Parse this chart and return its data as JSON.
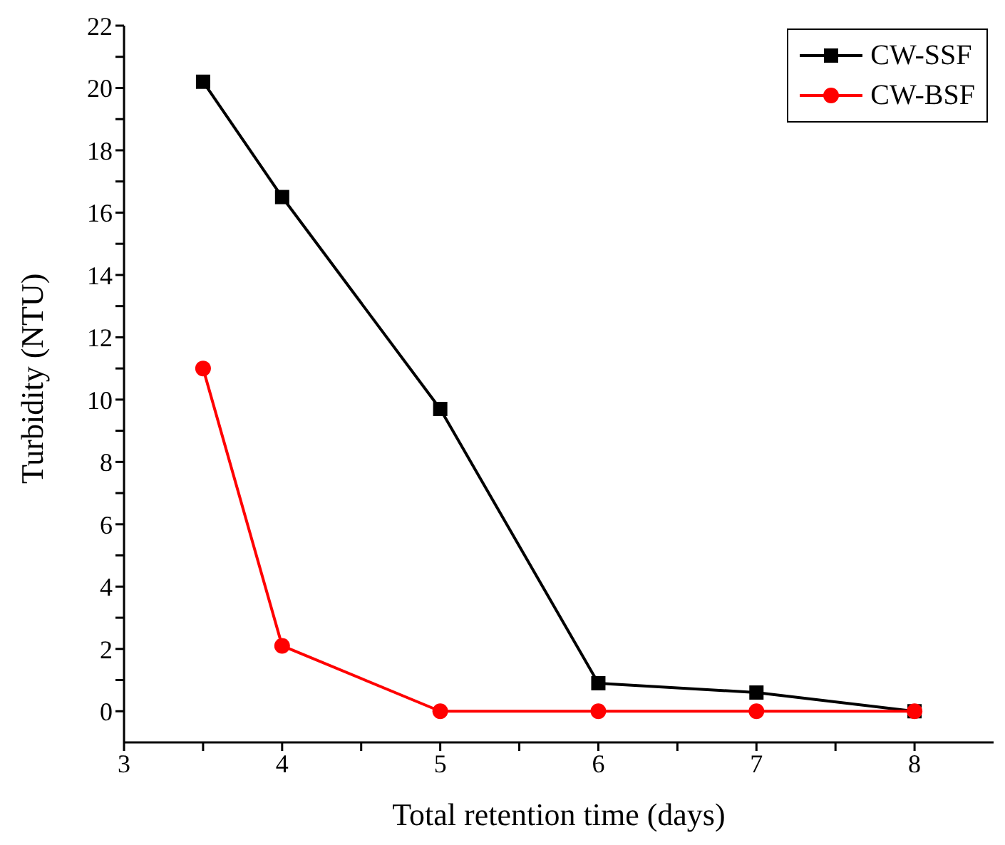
{
  "chart_data": {
    "type": "line",
    "xlabel": "Total retention time (days)",
    "ylabel": "Turbidity (NTU)",
    "x": [
      3.5,
      4,
      5,
      6,
      7,
      8
    ],
    "series": [
      {
        "name": "CW-SSF",
        "color": "#000000",
        "marker": "square",
        "values": [
          20.2,
          16.5,
          9.7,
          0.9,
          0.6,
          0
        ]
      },
      {
        "name": "CW-BSF",
        "color": "#ff0000",
        "marker": "circle",
        "values": [
          11,
          2.1,
          0,
          0,
          0,
          0
        ]
      }
    ],
    "xlim": [
      3,
      8.5
    ],
    "xticks": [
      3,
      {
        "value": 3.5,
        "label": null
      },
      4,
      {
        "value": 4.5,
        "label": null
      },
      5,
      {
        "value": 5.5,
        "label": null
      },
      6,
      {
        "value": 6.5,
        "label": null
      },
      7,
      {
        "value": 7.5,
        "label": null
      },
      8
    ],
    "ylim": [
      -1,
      22
    ],
    "yticks": [
      0,
      {
        "value": 1,
        "label": null
      },
      2,
      {
        "value": 3,
        "label": null
      },
      4,
      {
        "value": 5,
        "label": null
      },
      6,
      {
        "value": 7,
        "label": null
      },
      8,
      {
        "value": 9,
        "label": null
      },
      10,
      {
        "value": 11,
        "label": null
      },
      12,
      {
        "value": 13,
        "label": null
      },
      14,
      {
        "value": 15,
        "label": null
      },
      16,
      {
        "value": 17,
        "label": null
      },
      18,
      {
        "value": 19,
        "label": null
      },
      20,
      {
        "value": 21,
        "label": null
      },
      22
    ],
    "legend": "top right",
    "grid": false
  }
}
